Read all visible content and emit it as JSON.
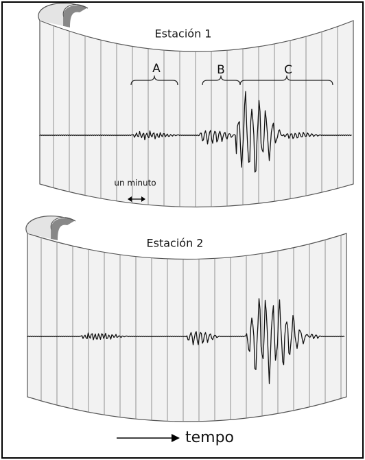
{
  "panels": [
    {
      "title": "Estación 1",
      "brace_labels": [
        "A",
        "B",
        "C"
      ],
      "scale_label": "un minuto"
    },
    {
      "title": "Estación 2"
    }
  ],
  "axis_label": "tempo"
}
